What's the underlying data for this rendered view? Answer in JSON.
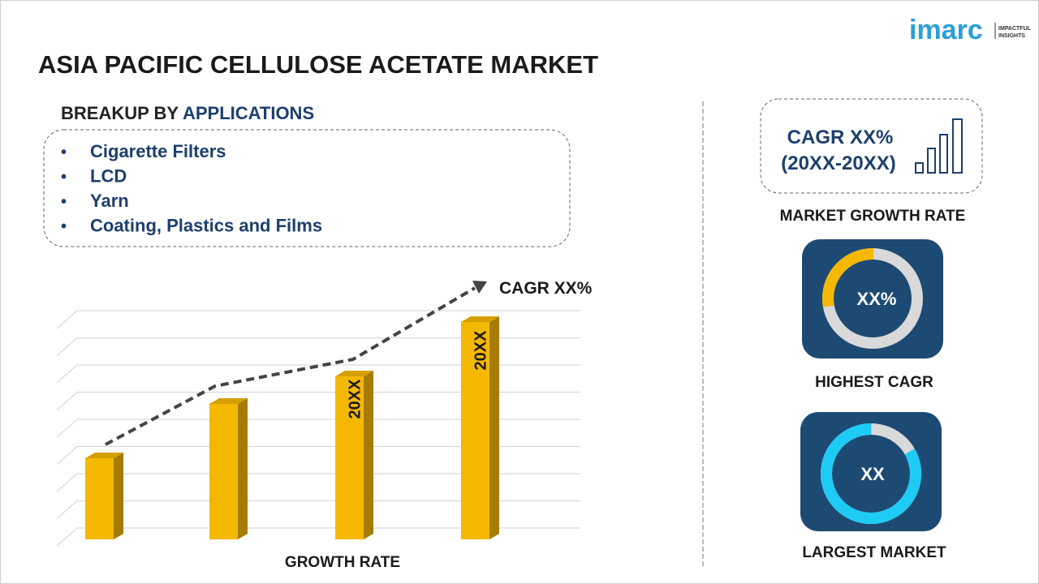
{
  "logo": {
    "brand": "imarc",
    "tagline_1": "IMPACTFUL",
    "tagline_2": "INSIGHTS"
  },
  "title": "ASIA PACIFIC CELLULOSE ACETATE MARKET",
  "breakup": {
    "prefix": "BREAKUP BY",
    "label": "APPLICATIONS",
    "items": [
      "Cigarette Filters",
      "LCD",
      "Yarn",
      "Coating, Plastics and Films"
    ]
  },
  "growth_chart": {
    "cagr_label": "CAGR XX%",
    "bar_labels": [
      "20XX",
      "20XX"
    ],
    "axis_label": "GROWTH RATE"
  },
  "market_growth": {
    "cagr": "CAGR XX%",
    "period": "(20XX-20XX)",
    "caption": "MARKET GROWTH RATE"
  },
  "highest_cagr": {
    "value": "XX%",
    "caption": "HIGHEST CAGR"
  },
  "largest_market": {
    "value": "XX",
    "caption": "LARGEST MARKET"
  }
}
